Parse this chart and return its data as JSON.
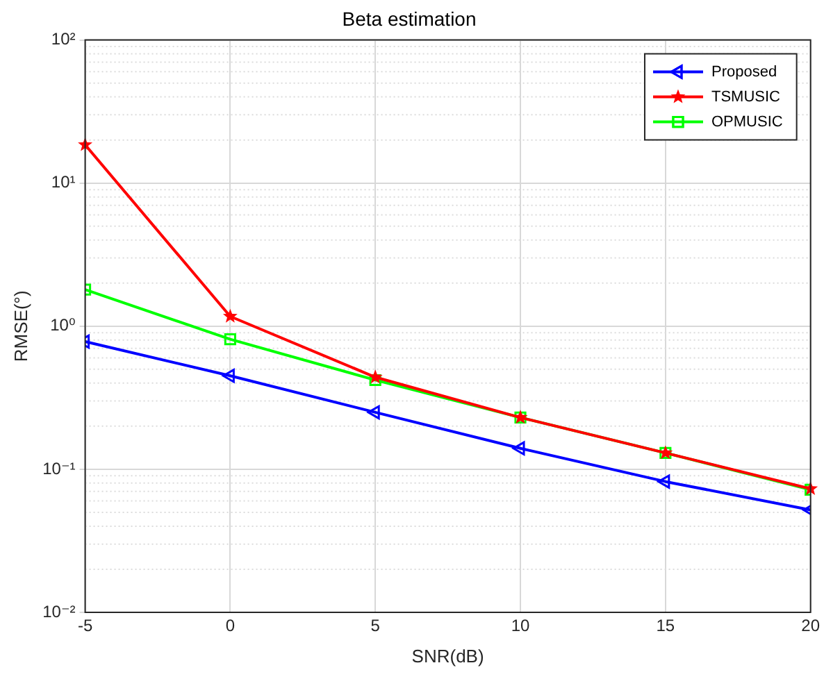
{
  "chart_data": {
    "type": "line",
    "title": "Beta estimation",
    "xlabel": "SNR(dB)",
    "ylabel": "RMSE(°)",
    "x": [
      -5,
      0,
      5,
      10,
      15,
      20
    ],
    "series": [
      {
        "name": "Proposed",
        "color": "#0000ff",
        "marker": "triangle",
        "values": [
          0.78,
          0.45,
          0.25,
          0.14,
          0.082,
          0.052
        ]
      },
      {
        "name": "TSMUSIC",
        "color": "#ff0000",
        "marker": "star",
        "values": [
          18.5,
          1.17,
          0.44,
          0.23,
          0.13,
          0.073
        ]
      },
      {
        "name": "OPMUSIC",
        "color": "#00ff00",
        "marker": "square",
        "values": [
          1.8,
          0.81,
          0.42,
          0.23,
          0.13,
          0.072
        ]
      }
    ],
    "xlim": [
      -5,
      20
    ],
    "xticks": [
      -5,
      0,
      5,
      10,
      15,
      20
    ],
    "ylim": [
      0.01,
      100
    ],
    "yticks": [
      {
        "value": 0.01,
        "label": "10⁻²"
      },
      {
        "value": 0.1,
        "label": "10⁻¹"
      },
      {
        "value": 1,
        "label": "10⁰"
      },
      {
        "value": 10,
        "label": "10¹"
      },
      {
        "value": 100,
        "label": "10²"
      }
    ],
    "log": "y",
    "grid": true,
    "legend": "top right",
    "line_style": "solid"
  }
}
